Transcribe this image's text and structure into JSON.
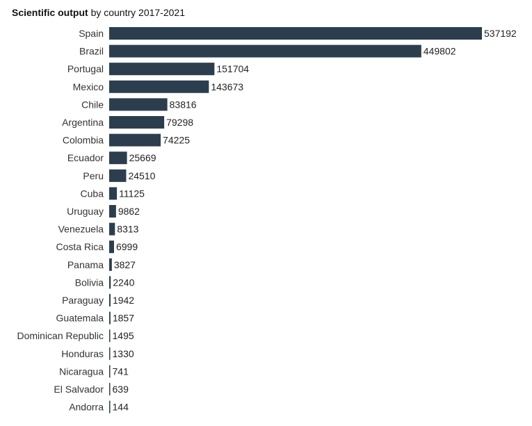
{
  "chart_data": {
    "type": "bar",
    "orientation": "horizontal",
    "title": "Scientific output",
    "subtitle": "by country 2017-2021",
    "categories": [
      "Spain",
      "Brazil",
      "Portugal",
      "Mexico",
      "Chile",
      "Argentina",
      "Colombia",
      "Ecuador",
      "Peru",
      "Cuba",
      "Uruguay",
      "Venezuela",
      "Costa Rica",
      "Panama",
      "Bolivia",
      "Paraguay",
      "Guatemala",
      "Dominican Republic",
      "Honduras",
      "Nicaragua",
      "El Salvador",
      "Andorra"
    ],
    "values": [
      537192,
      449802,
      151704,
      143673,
      83816,
      79298,
      74225,
      25669,
      24510,
      11125,
      9862,
      8313,
      6999,
      3827,
      2240,
      1942,
      1857,
      1495,
      1330,
      741,
      639,
      144
    ],
    "xlim": [
      0,
      537192
    ],
    "grid": false,
    "legend": "none",
    "bar_color": "#2c3e4e"
  }
}
